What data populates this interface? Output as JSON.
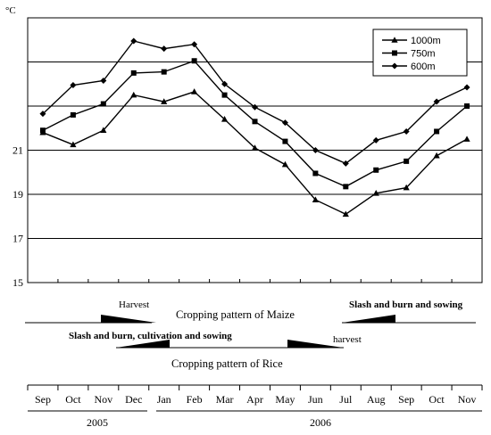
{
  "chart_data": {
    "type": "line",
    "ylabel": "°C",
    "ylim": [
      15,
      27
    ],
    "yticks": [
      15,
      17,
      19,
      21
    ],
    "grid": true,
    "legend_position": "top-right",
    "categories": [
      "Sep",
      "Oct",
      "Nov",
      "Dec",
      "Jan",
      "Feb",
      "Mar",
      "Apr",
      "May",
      "Jun",
      "Jul",
      "Aug",
      "Sep",
      "Oct",
      "Nov"
    ],
    "years": [
      {
        "label": "2005",
        "span": [
          "Sep",
          "Dec"
        ]
      },
      {
        "label": "2006",
        "span": [
          "Jan",
          "Nov"
        ]
      }
    ],
    "series": [
      {
        "name": "1000m",
        "marker": "triangle",
        "values": [
          21.8,
          21.25,
          21.9,
          23.5,
          23.2,
          23.65,
          22.4,
          21.1,
          20.35,
          18.75,
          18.1,
          19.05,
          19.3,
          20.75,
          21.5
        ]
      },
      {
        "name": "750m",
        "marker": "square",
        "values": [
          21.9,
          22.6,
          23.1,
          24.5,
          24.55,
          25.05,
          23.5,
          22.3,
          21.4,
          19.95,
          19.35,
          20.1,
          20.5,
          21.85,
          23.0
        ]
      },
      {
        "name": "600m",
        "marker": "diamond",
        "values": [
          22.65,
          23.95,
          24.15,
          25.95,
          25.6,
          25.8,
          24.0,
          22.95,
          22.25,
          21.0,
          20.4,
          21.45,
          21.85,
          23.2,
          23.85
        ]
      }
    ]
  },
  "cropping": {
    "maize_title": "Cropping pattern of Maize",
    "maize_harvest": "Harvest",
    "maize_sowing": "Slash and burn and sowing",
    "rice_title": "Cropping pattern of Rice",
    "rice_sowing": "Slash and burn, cultivation and sowing",
    "rice_harvest": "harvest"
  }
}
